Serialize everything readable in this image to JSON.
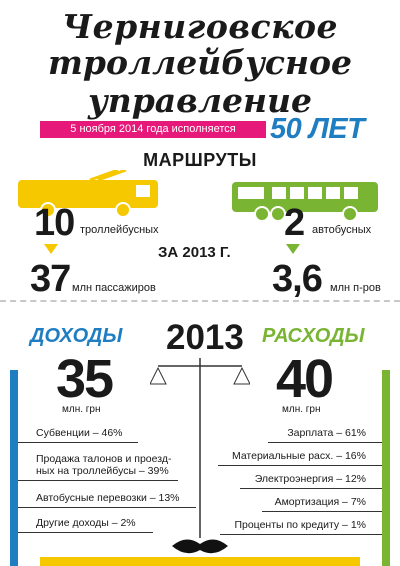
{
  "header": {
    "title_line1": "Черниговское",
    "title_line2": "троллейбусное",
    "title_line3": "управление",
    "banner_text": "5 ноября 2014 года исполняется",
    "anniversary": "50 ЛЕТ"
  },
  "routes": {
    "heading": "МАРШРУТЫ",
    "trolleybus_count": "10",
    "trolleybus_label": "троллейбусных",
    "bus_count": "2",
    "bus_label": "автобусных",
    "period": "ЗА 2013 Г.",
    "trolleybus_passengers": "37",
    "trolleybus_passengers_unit": "млн пассажиров",
    "bus_passengers": "3,6",
    "bus_passengers_unit": "млн п-ров"
  },
  "finance": {
    "income_heading": "ДОХОДЫ",
    "expense_heading": "РАСХОДЫ",
    "year": "2013",
    "income_value": "35",
    "income_unit": "млн. грн",
    "expense_value": "40",
    "expense_unit": "млн. грн",
    "income_items": [
      "Субвенции – 46%",
      "Продажа талонов и проезд-",
      "ных на троллейбусы – 39%",
      "Автобусные перевозки – 13%",
      "Другие доходы – 2%"
    ],
    "expense_items": [
      "Зарплата – 61%",
      "Материальные расх. – 16%",
      "Электроэнергия – 12%",
      "Амортизация – 7%",
      "Проценты по кредиту – 1%"
    ]
  },
  "colors": {
    "trolleybus": "#f6c800",
    "bus": "#79b533",
    "income": "#1f7dc1",
    "banner": "#e6197a"
  }
}
